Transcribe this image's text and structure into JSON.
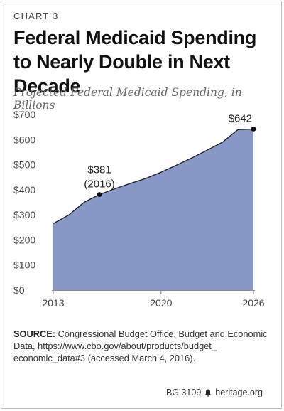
{
  "header": {
    "label": "CHART 3",
    "title": "Federal Medicaid Spending to Nearly Double in Next Decade",
    "subtitle": "Projected Federal Medicaid Spending, in Billions"
  },
  "chart_data": {
    "type": "area",
    "title": "Federal Medicaid Spending to Nearly Double in Next Decade",
    "subtitle": "Projected Federal Medicaid Spending, in Billions",
    "x": [
      2013,
      2014,
      2015,
      2016,
      2017,
      2018,
      2019,
      2020,
      2021,
      2022,
      2023,
      2024,
      2025,
      2026
    ],
    "series": [
      {
        "values": [
          265,
          299,
          350,
          381,
          404,
          425,
          445,
          470,
          498,
          527,
          558,
          590,
          640,
          642
        ]
      }
    ],
    "xticks": [
      2013,
      2020,
      2026
    ],
    "yticks": [
      0,
      100,
      200,
      300,
      400,
      500,
      600,
      700
    ],
    "ytick_labels": [
      "$0",
      "$100",
      "$200",
      "$300",
      "$400",
      "$500",
      "$600",
      "$700"
    ],
    "xlim": [
      2013,
      2026
    ],
    "ylim": [
      0,
      700
    ],
    "grid": false,
    "annotations": [
      {
        "x": 2016,
        "y": 381,
        "lines": [
          "$381",
          "(2016)"
        ]
      },
      {
        "x": 2026,
        "y": 642,
        "lines": [
          "$642"
        ]
      }
    ],
    "fill_color": "#8798c6",
    "line_color": "#1a1a1a"
  },
  "source": {
    "prefix": "SOURCE:",
    "text": "Congressional Budget Office, Budget and Economic Data, https://www.cbo.gov/about/products/budget_ economic_data#3 (accessed March 4, 2016)."
  },
  "footer": {
    "code": "BG 3109",
    "site": "heritage.org",
    "icon": "liberty-bell-icon"
  }
}
